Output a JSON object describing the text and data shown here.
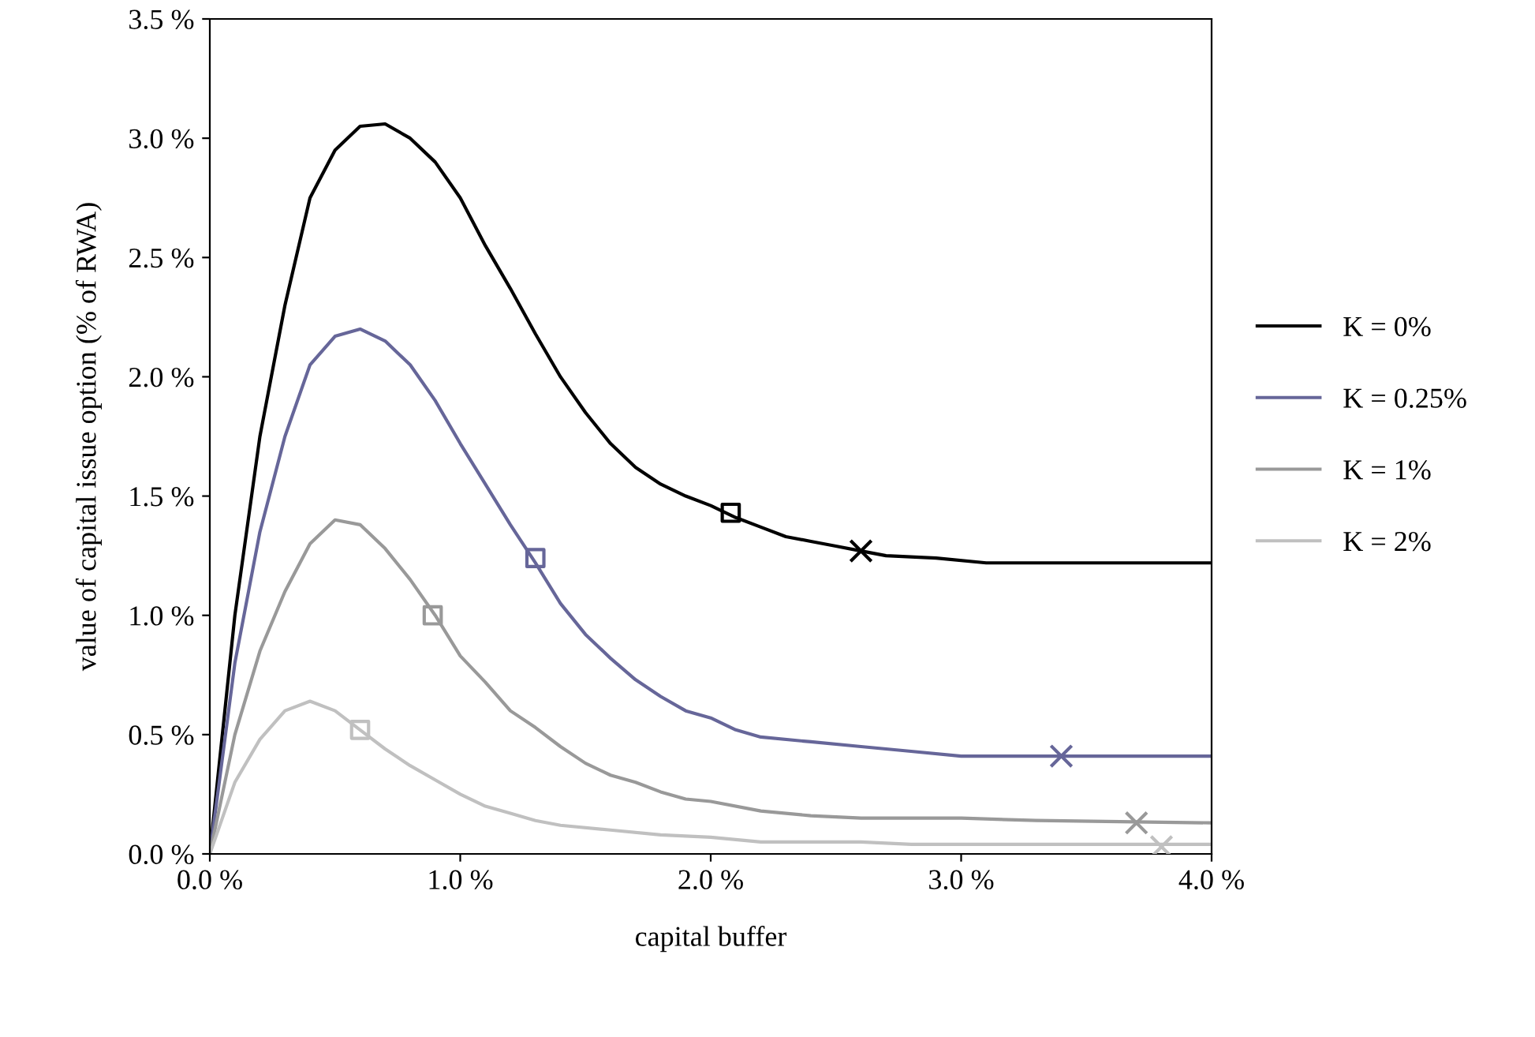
{
  "chart_data": {
    "type": "line",
    "xlabel": "capital buffer",
    "ylabel": "value of capital issue option (% of RWA)",
    "xlim": [
      0,
      4
    ],
    "ylim": [
      0,
      3.5
    ],
    "xticks": [
      {
        "value": 0,
        "label": "0.0 %"
      },
      {
        "value": 1,
        "label": "1.0 %"
      },
      {
        "value": 2,
        "label": "2.0 %"
      },
      {
        "value": 3,
        "label": "3.0 %"
      },
      {
        "value": 4,
        "label": "4.0 %"
      }
    ],
    "yticks": [
      {
        "value": 0,
        "label": "0.0 %"
      },
      {
        "value": 0.5,
        "label": "0.5 %"
      },
      {
        "value": 1,
        "label": "1.0 %"
      },
      {
        "value": 1.5,
        "label": "1.5 %"
      },
      {
        "value": 2,
        "label": "2.0 %"
      },
      {
        "value": 2.5,
        "label": "2.5 %"
      },
      {
        "value": 3,
        "label": "3.0 %"
      },
      {
        "value": 3.5,
        "label": "3.5 %"
      }
    ],
    "grid": false,
    "legend": "right",
    "marker": "none",
    "line_style": "solid",
    "series": [
      {
        "name": "K = 0%",
        "color": "#000000",
        "x": [
          0,
          0.1,
          0.2,
          0.3,
          0.4,
          0.5,
          0.6,
          0.7,
          0.8,
          0.9,
          1.0,
          1.1,
          1.2,
          1.3,
          1.4,
          1.5,
          1.6,
          1.7,
          1.8,
          1.9,
          2.0,
          2.1,
          2.2,
          2.3,
          2.4,
          2.5,
          2.6,
          2.7,
          2.9,
          3.1,
          4.0
        ],
        "values": [
          0,
          1.0,
          1.75,
          2.3,
          2.75,
          2.95,
          3.05,
          3.06,
          3.0,
          2.9,
          2.75,
          2.55,
          2.37,
          2.18,
          2.0,
          1.85,
          1.72,
          1.62,
          1.55,
          1.5,
          1.46,
          1.41,
          1.37,
          1.33,
          1.31,
          1.29,
          1.27,
          1.25,
          1.24,
          1.22,
          1.22
        ]
      },
      {
        "name": "K = 0.25%",
        "color": "#666699",
        "x": [
          0,
          0.1,
          0.2,
          0.3,
          0.4,
          0.5,
          0.6,
          0.7,
          0.8,
          0.9,
          1.0,
          1.1,
          1.2,
          1.3,
          1.4,
          1.5,
          1.6,
          1.7,
          1.8,
          1.9,
          2.0,
          2.1,
          2.2,
          2.4,
          2.6,
          2.8,
          3.0,
          4.0
        ],
        "values": [
          0,
          0.8,
          1.35,
          1.75,
          2.05,
          2.17,
          2.2,
          2.15,
          2.05,
          1.9,
          1.72,
          1.55,
          1.38,
          1.22,
          1.05,
          0.92,
          0.82,
          0.73,
          0.66,
          0.6,
          0.57,
          0.52,
          0.49,
          0.47,
          0.45,
          0.43,
          0.41,
          0.41
        ]
      },
      {
        "name": "K = 1%",
        "color": "#999999",
        "x": [
          0,
          0.1,
          0.2,
          0.3,
          0.4,
          0.5,
          0.6,
          0.7,
          0.8,
          0.9,
          1.0,
          1.1,
          1.2,
          1.3,
          1.4,
          1.5,
          1.6,
          1.7,
          1.8,
          1.9,
          2.0,
          2.2,
          2.4,
          2.6,
          3.0,
          3.3,
          4.0
        ],
        "values": [
          0,
          0.5,
          0.85,
          1.1,
          1.3,
          1.4,
          1.38,
          1.28,
          1.15,
          1.0,
          0.83,
          0.72,
          0.6,
          0.53,
          0.45,
          0.38,
          0.33,
          0.3,
          0.26,
          0.23,
          0.22,
          0.18,
          0.16,
          0.15,
          0.15,
          0.14,
          0.13
        ]
      },
      {
        "name": "K = 2%",
        "color": "#c0c0c0",
        "x": [
          0,
          0.1,
          0.2,
          0.3,
          0.4,
          0.5,
          0.6,
          0.7,
          0.8,
          0.9,
          1.0,
          1.1,
          1.2,
          1.3,
          1.4,
          1.6,
          1.8,
          2.0,
          2.2,
          2.6,
          2.8,
          4.0
        ],
        "values": [
          0,
          0.3,
          0.48,
          0.6,
          0.64,
          0.6,
          0.52,
          0.44,
          0.37,
          0.31,
          0.25,
          0.2,
          0.17,
          0.14,
          0.12,
          0.1,
          0.08,
          0.07,
          0.05,
          0.05,
          0.04,
          0.04
        ]
      },
      {
        "type": "scatter",
        "marker": "square",
        "colors": [
          "#000000",
          "#666699",
          "#999999",
          "#c0c0c0"
        ],
        "x": [
          2.08,
          1.3,
          0.89,
          0.6
        ],
        "values": [
          1.43,
          1.24,
          1.0,
          0.52
        ]
      },
      {
        "type": "scatter",
        "marker": "cross",
        "colors": [
          "#000000",
          "#666699",
          "#999999",
          "#c0c0c0"
        ],
        "x": [
          2.6,
          3.4,
          3.7,
          3.8
        ],
        "values": [
          1.27,
          0.41,
          0.13,
          0.03
        ]
      }
    ]
  }
}
